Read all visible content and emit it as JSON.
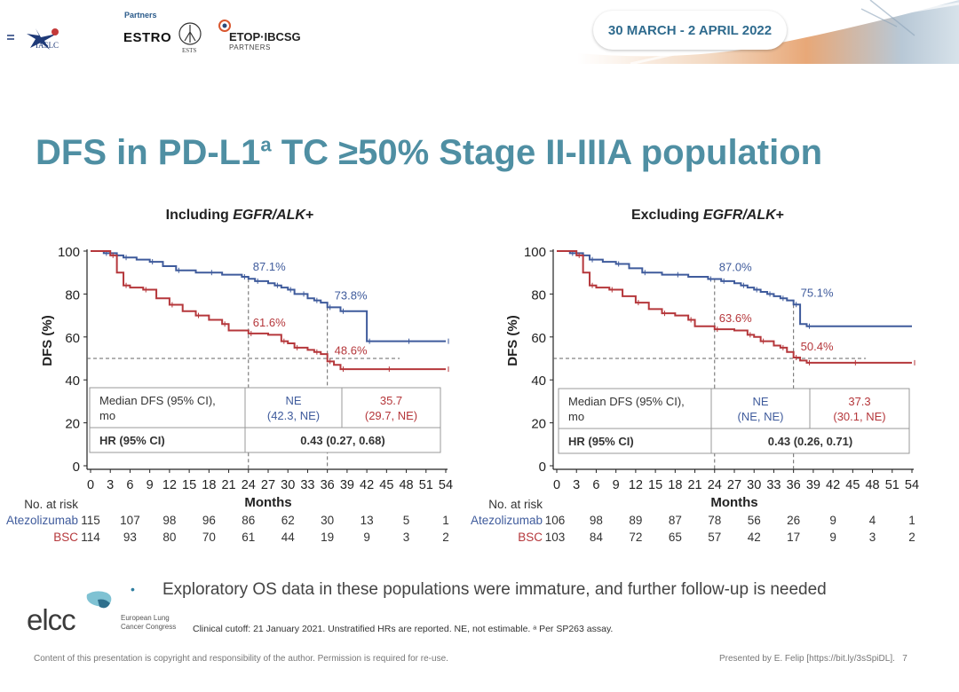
{
  "header": {
    "logo_iaslc": "IASLC",
    "partners_label": "Partners",
    "logo_estro": "ESTRO",
    "logo_ests": "ESTS",
    "logo_etop": "ETOP·IBCSG",
    "logo_etop_sub": "PARTNERS",
    "date": "30 MARCH - 2 APRIL 2022"
  },
  "slide": {
    "title": "DFS in PD-L1",
    "title_sup": "a",
    "title_rest": " TC ≥50% Stage II-IIIA population",
    "bullet": "Exploratory OS data in these populations were immature, and further follow-up is needed",
    "footnote": "Clinical cutoff: 21 January 2021. Unstratified HRs are reported. NE, not estimable. ᵃ Per SP263 assay.",
    "copyright": "Content of this presentation is copyright and responsibility of the author. Permission is required for re-use.",
    "presenter": "Presented by E. Felip [https://bit.ly/3sSpiDL].",
    "page_number": "7",
    "elcc_logo": "elcc",
    "elcc_sub": "European Lung Cancer Congress"
  },
  "colors": {
    "atezo": "#3f5b9c",
    "bsc": "#b5373b",
    "title": "#4f8fa3"
  },
  "chart_data": [
    {
      "type": "line",
      "title_prefix": "Including ",
      "title_italic": "EGFR/ALK",
      "title_suffix": "+",
      "xlabel": "Months",
      "ylabel": "DFS (%)",
      "xlim": [
        0,
        54
      ],
      "ylim": [
        0,
        100
      ],
      "xticks": [
        0,
        3,
        6,
        9,
        12,
        15,
        18,
        21,
        24,
        27,
        30,
        33,
        36,
        39,
        42,
        45,
        48,
        51,
        54
      ],
      "yticks": [
        0,
        20,
        40,
        60,
        80,
        100
      ],
      "series": [
        {
          "name": "Atezolizumab",
          "color": "#3f5b9c",
          "x": [
            0,
            2,
            4,
            5,
            7,
            9,
            11,
            13,
            16,
            18,
            20,
            23,
            24,
            25,
            27,
            28,
            29,
            30,
            31,
            32,
            33,
            34,
            35,
            36,
            37,
            38,
            39,
            42,
            45,
            48,
            51,
            54
          ],
          "y": [
            100,
            99,
            98,
            97,
            96,
            95,
            93,
            91,
            90,
            90,
            89,
            88,
            87.1,
            86,
            85,
            84,
            83,
            82,
            80,
            80,
            78,
            77,
            76,
            73.8,
            73.8,
            72,
            72,
            58,
            58,
            58,
            58,
            58
          ],
          "label": "87.1%",
          "label_x": 24,
          "label2": "73.8%",
          "label2_x": 36
        },
        {
          "name": "BSC",
          "color": "#b5373b",
          "x": [
            0,
            3,
            4,
            5,
            6,
            8,
            10,
            12,
            14,
            16,
            18,
            20,
            21,
            24,
            27,
            29,
            30,
            31,
            33,
            34,
            35,
            36,
            37,
            38,
            40,
            45,
            50,
            54
          ],
          "y": [
            100,
            98,
            90,
            84,
            83,
            82,
            78,
            75,
            72,
            70,
            68,
            66,
            63,
            61.6,
            61,
            58,
            57,
            55,
            54,
            53,
            52,
            48.6,
            47,
            45,
            45,
            45,
            45,
            45
          ],
          "label": "61.6%",
          "label_x": 24,
          "label2": "48.6%",
          "label2_x": 36
        }
      ],
      "median_line": 50,
      "table": {
        "row1_label": [
          "Median DFS (95% CI),",
          "mo"
        ],
        "atezo_value": [
          "NE",
          "(42.3, NE)"
        ],
        "bsc_value": [
          "35.7",
          "(29.7, NE)"
        ],
        "row2_label": "HR (95% CI)",
        "hr": "0.43 (0.27, 0.68)"
      },
      "risk": {
        "header": "No. at risk",
        "months": [
          0,
          6,
          12,
          18,
          24,
          30,
          36,
          42,
          48,
          54
        ],
        "rows": [
          {
            "name": "Atezolizumab",
            "values": [
              115,
              107,
              98,
              96,
              86,
              62,
              30,
              13,
              5,
              1
            ]
          },
          {
            "name": "BSC",
            "values": [
              114,
              93,
              80,
              70,
              61,
              44,
              19,
              9,
              3,
              2
            ]
          }
        ]
      }
    },
    {
      "type": "line",
      "title_prefix": "Excluding ",
      "title_italic": "EGFR/ALK",
      "title_suffix": "+",
      "xlabel": "Months",
      "ylabel": "DFS (%)",
      "xlim": [
        0,
        54
      ],
      "ylim": [
        0,
        100
      ],
      "xticks": [
        0,
        3,
        6,
        9,
        12,
        15,
        18,
        21,
        24,
        27,
        30,
        33,
        36,
        39,
        42,
        45,
        48,
        51,
        54
      ],
      "yticks": [
        0,
        20,
        40,
        60,
        80,
        100
      ],
      "series": [
        {
          "name": "Atezolizumab",
          "color": "#3f5b9c",
          "x": [
            0,
            2,
            4,
            5,
            7,
            9,
            11,
            13,
            16,
            18,
            20,
            23,
            24,
            25,
            27,
            28,
            29,
            30,
            31,
            32,
            33,
            34,
            35,
            36,
            37,
            38,
            54
          ],
          "y": [
            100,
            99,
            98,
            96,
            95,
            94,
            92,
            90,
            89,
            89,
            88,
            87,
            87.0,
            86,
            85,
            84,
            83,
            82,
            81,
            80,
            79,
            78,
            77,
            75.1,
            66,
            65,
            65
          ],
          "label": "87.0%",
          "label_x": 24,
          "label2": "75.1%",
          "label2_x": 36
        },
        {
          "name": "BSC",
          "color": "#b5373b",
          "x": [
            0,
            3,
            4,
            5,
            6,
            8,
            10,
            12,
            14,
            16,
            18,
            20,
            21,
            24,
            27,
            29,
            30,
            31,
            33,
            34,
            35,
            36,
            37,
            38,
            40,
            45,
            50,
            54
          ],
          "y": [
            100,
            98,
            90,
            84,
            83,
            82,
            79,
            76,
            73,
            71,
            70,
            68,
            65,
            63.6,
            63,
            61,
            60,
            58,
            56,
            55,
            53,
            50.4,
            49,
            48,
            48,
            48,
            48,
            48
          ],
          "label": "63.6%",
          "label_x": 24,
          "label2": "50.4%",
          "label2_x": 36
        }
      ],
      "median_line": 50,
      "table": {
        "row1_label": [
          "Median DFS (95% CI),",
          "mo"
        ],
        "atezo_value": [
          "NE",
          "(NE, NE)"
        ],
        "bsc_value": [
          "37.3",
          "(30.1, NE)"
        ],
        "row2_label": "HR (95% CI)",
        "hr": "0.43 (0.26, 0.71)"
      },
      "risk": {
        "header": "No. at risk",
        "months": [
          0,
          6,
          12,
          18,
          24,
          30,
          36,
          42,
          48,
          54
        ],
        "rows": [
          {
            "name": "Atezolizumab",
            "values": [
              106,
              98,
              89,
              87,
              78,
              56,
              26,
              9,
              4,
              1
            ]
          },
          {
            "name": "BSC",
            "values": [
              103,
              84,
              72,
              65,
              57,
              42,
              17,
              9,
              3,
              2
            ]
          }
        ]
      }
    }
  ]
}
